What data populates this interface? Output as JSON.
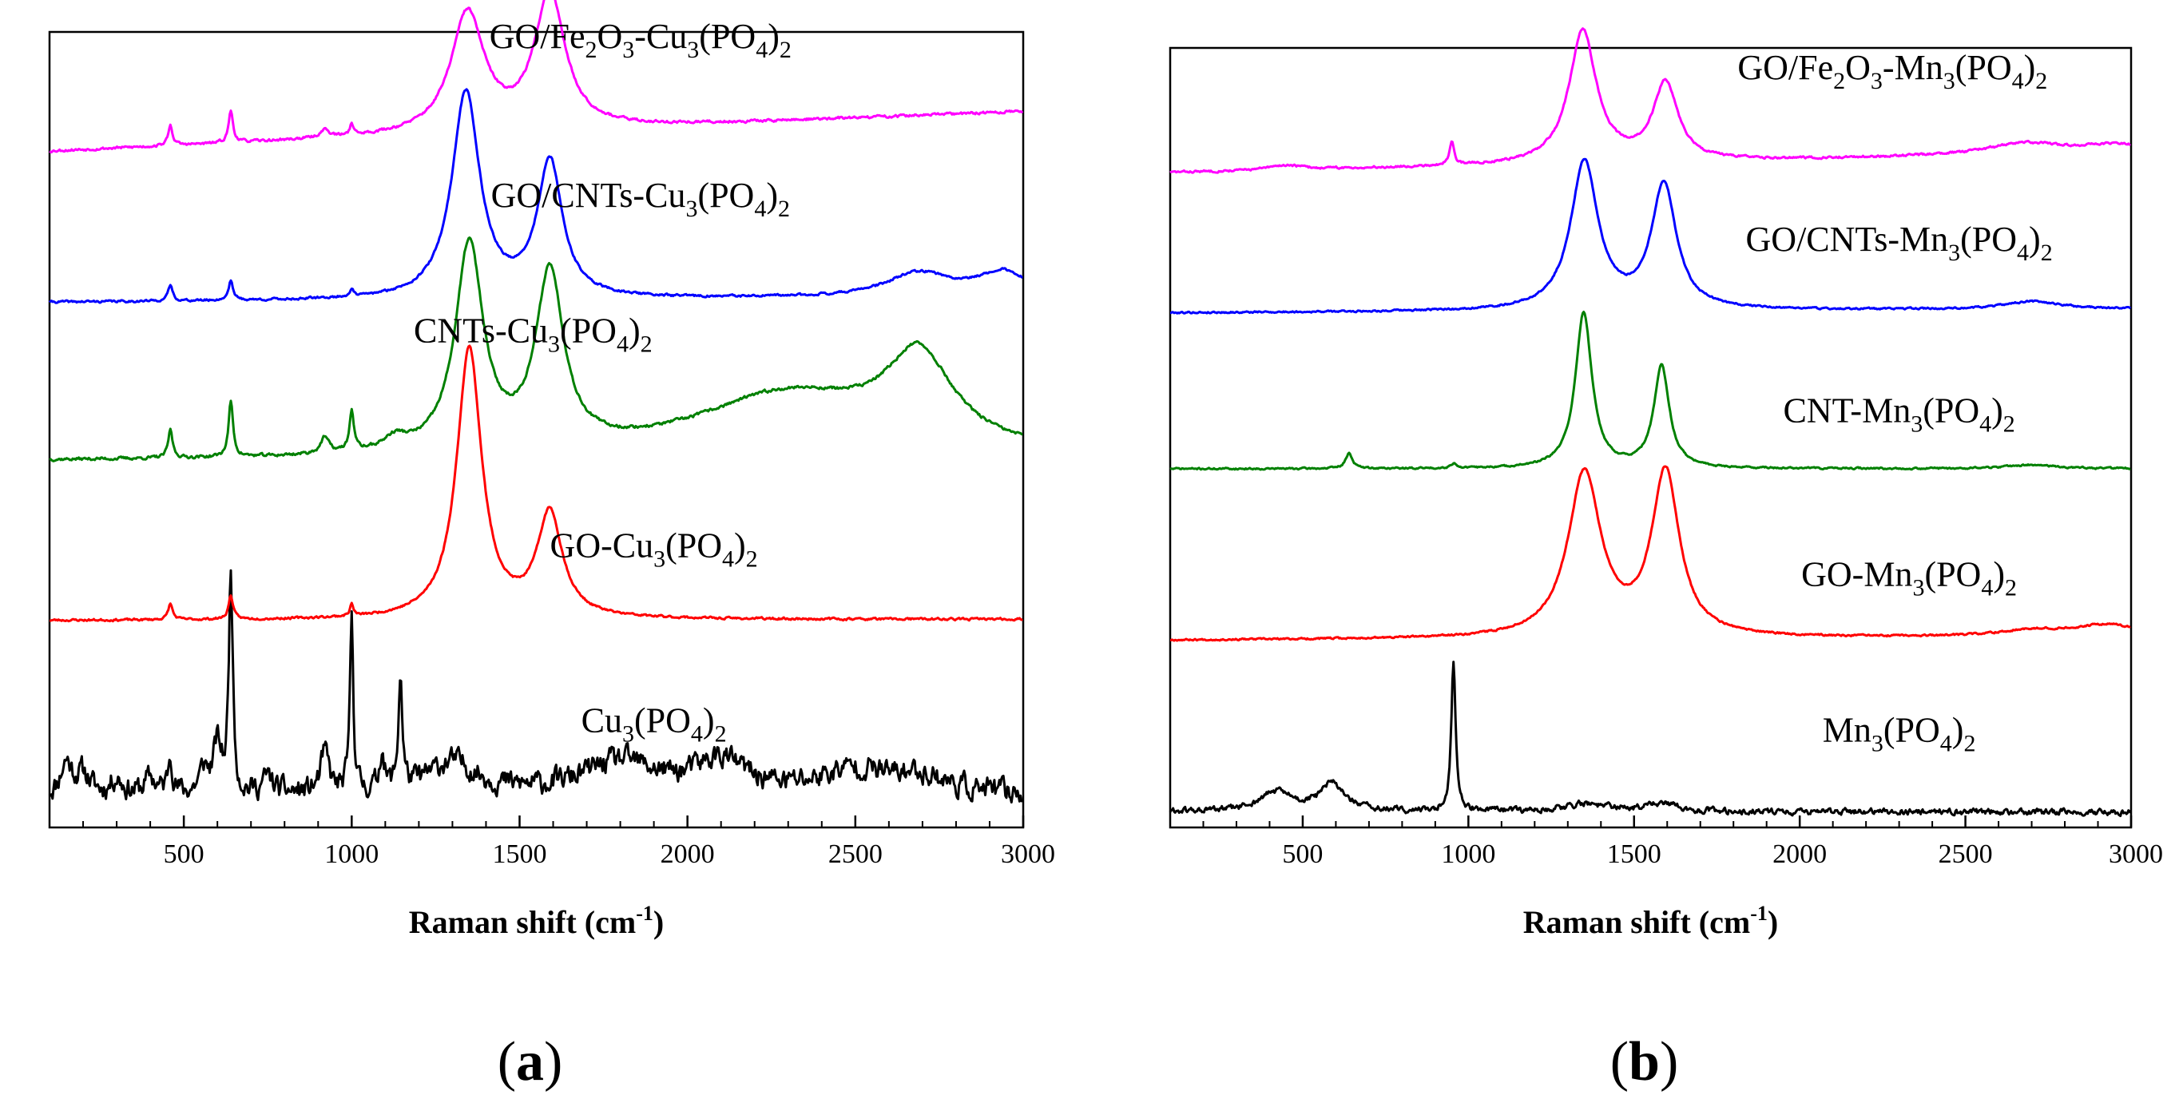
{
  "chart_data": [
    {
      "id": "a",
      "type": "line",
      "panel_label": "a",
      "xlabel": "Raman shift",
      "xlabel_unit": "(cm",
      "xlabel_unit_exp": "-1",
      "xlabel_unit_end": ")",
      "ylabel": "",
      "xlim": [
        100,
        3000
      ],
      "ylim": [
        0,
        100
      ],
      "grid": false,
      "x_ticks": [
        500,
        1000,
        1500,
        2000,
        2500,
        3000
      ],
      "series": [
        {
          "name": "Cu3(PO4)2",
          "label_parts": [
            [
              "n",
              "Cu"
            ],
            [
              "s",
              "3"
            ],
            [
              "n",
              "(PO"
            ],
            [
              "s",
              "4"
            ],
            [
              "n",
              ")"
            ],
            [
              "s",
              "2"
            ]
          ],
          "color": "#000000",
          "offset": 4,
          "baseline_slope": 0,
          "noise": 2.6,
          "noise_seed": 11,
          "label_x": 1900,
          "label_y": 12,
          "peaks": [
            [
              150,
              4,
              20
            ],
            [
              200,
              2.5,
              25
            ],
            [
              300,
              2,
              20
            ],
            [
              400,
              2,
              20
            ],
            [
              460,
              5,
              8
            ],
            [
              560,
              3,
              15
            ],
            [
              600,
              6,
              15
            ],
            [
              640,
              28,
              7
            ],
            [
              750,
              2,
              20
            ],
            [
              920,
              5,
              15
            ],
            [
              1000,
              22,
              6
            ],
            [
              1090,
              5,
              8
            ],
            [
              1145,
              14,
              7
            ],
            [
              1300,
              4,
              90
            ],
            [
              1800,
              4,
              140
            ],
            [
              2100,
              4,
              90
            ],
            [
              2500,
              3,
              130
            ],
            [
              2700,
              2,
              90
            ]
          ]
        },
        {
          "name": "GO-Cu3(PO4)2",
          "label_parts": [
            [
              "n",
              "GO-Cu"
            ],
            [
              "s",
              "3"
            ],
            [
              "n",
              "(PO"
            ],
            [
              "s",
              "4"
            ],
            [
              "n",
              ")"
            ],
            [
              "s",
              "2"
            ]
          ],
          "color": "#ff0000",
          "offset": 26,
          "baseline_slope": 0.15,
          "noise": 0.25,
          "noise_seed": 23,
          "label_x": 1900,
          "label_y": 34,
          "peaks": [
            [
              460,
              2,
              8
            ],
            [
              640,
              3,
              8
            ],
            [
              1000,
              1.5,
              6
            ],
            [
              1350,
              34,
              45
            ],
            [
              1590,
              13,
              45
            ]
          ]
        },
        {
          "name": "CNTs-Cu3(PO4)2",
          "label_parts": [
            [
              "n",
              "CNTs-Cu"
            ],
            [
              "s",
              "3"
            ],
            [
              "n",
              "(PO"
            ],
            [
              "s",
              "4"
            ],
            [
              "n",
              ")"
            ],
            [
              "s",
              "2"
            ]
          ],
          "color": "#008000",
          "offset": 46,
          "baseline_slope": 0.2,
          "noise": 0.35,
          "noise_seed": 37,
          "label_x": 1540,
          "label_y": 61,
          "peaks": [
            [
              460,
              3.5,
              8
            ],
            [
              640,
              7,
              8
            ],
            [
              920,
              2,
              15
            ],
            [
              1000,
              5,
              8
            ],
            [
              1130,
              1.5,
              40
            ],
            [
              1350,
              26,
              50
            ],
            [
              1590,
              22,
              50
            ],
            [
              2300,
              8,
              350
            ],
            [
              2690,
              11,
              120
            ]
          ]
        },
        {
          "name": "GO/CNTs-Cu3(PO4)2",
          "label_parts": [
            [
              "n",
              "GO/CNTs-Cu"
            ],
            [
              "s",
              "3"
            ],
            [
              "n",
              "(PO"
            ],
            [
              "s",
              "4"
            ],
            [
              "n",
              ")"
            ],
            [
              "s",
              "2"
            ]
          ],
          "color": "#0000ff",
          "offset": 66,
          "baseline_slope": 0.6,
          "noise": 0.25,
          "noise_seed": 41,
          "label_x": 1860,
          "label_y": 78,
          "peaks": [
            [
              460,
              2,
              8
            ],
            [
              640,
              2.5,
              8
            ],
            [
              1000,
              1,
              6
            ],
            [
              1340,
              26,
              50
            ],
            [
              1590,
              17,
              45
            ],
            [
              2690,
              3,
              120
            ],
            [
              2940,
              3,
              90
            ]
          ]
        },
        {
          "name": "GO/Fe2O3-Cu3(PO4)2",
          "label_parts": [
            [
              "n",
              "GO/Fe"
            ],
            [
              "s",
              "2"
            ],
            [
              "n",
              "O"
            ],
            [
              "s",
              "3"
            ],
            [
              "n",
              "-Cu"
            ],
            [
              "s",
              "3"
            ],
            [
              "n",
              "(PO"
            ],
            [
              "s",
              "4"
            ],
            [
              "n",
              ")"
            ],
            [
              "s",
              "2"
            ]
          ],
          "color": "#ff00ff",
          "offset": 85,
          "baseline_slope": 5,
          "noise": 0.3,
          "noise_seed": 53,
          "label_x": 1860,
          "label_y": 98,
          "peaks": [
            [
              460,
              2.5,
              8
            ],
            [
              640,
              4,
              8
            ],
            [
              920,
              1,
              15
            ],
            [
              1000,
              1.5,
              6
            ],
            [
              1345,
              15,
              60
            ],
            [
              1590,
              17,
              55
            ]
          ]
        }
      ]
    },
    {
      "id": "b",
      "type": "line",
      "panel_label": "b",
      "xlabel": "Raman shift",
      "xlabel_unit": "(cm",
      "xlabel_unit_exp": "-1",
      "xlabel_unit_end": ")",
      "ylabel": "",
      "xlim": [
        100,
        3000
      ],
      "ylim": [
        0,
        100
      ],
      "grid": false,
      "x_ticks": [
        500,
        1000,
        1500,
        2000,
        2500,
        3000
      ],
      "series": [
        {
          "name": "Mn3(PO4)2",
          "label_parts": [
            [
              "n",
              "Mn"
            ],
            [
              "s",
              "3"
            ],
            [
              "n",
              "(PO"
            ],
            [
              "s",
              "4"
            ],
            [
              "n",
              ")"
            ],
            [
              "s",
              "2"
            ]
          ],
          "color": "#000000",
          "offset": 2,
          "baseline_slope": 0,
          "noise": 0.7,
          "noise_seed": 61,
          "label_x": 2300,
          "label_y": 11,
          "peaks": [
            [
              420,
              2.5,
              60
            ],
            [
              590,
              3.5,
              45
            ],
            [
              955,
              19,
              8
            ],
            [
              1350,
              1,
              80
            ],
            [
              1580,
              1,
              60
            ]
          ]
        },
        {
          "name": "GO-Mn3(PO4)2",
          "label_parts": [
            [
              "n",
              "GO-Mn"
            ],
            [
              "s",
              "3"
            ],
            [
              "n",
              "(PO"
            ],
            [
              "s",
              "4"
            ],
            [
              "n",
              ")"
            ],
            [
              "s",
              "2"
            ]
          ],
          "color": "#ff0000",
          "offset": 24,
          "baseline_slope": 0.4,
          "noise": 0.2,
          "noise_seed": 67,
          "label_x": 2330,
          "label_y": 31,
          "peaks": [
            [
              1350,
              21,
              60
            ],
            [
              1595,
              21,
              50
            ],
            [
              2700,
              0.8,
              120
            ],
            [
              2930,
              1.5,
              120
            ]
          ]
        },
        {
          "name": "CNT-Mn3(PO4)2",
          "label_parts": [
            [
              "n",
              "CNT-Mn"
            ],
            [
              "s",
              "3"
            ],
            [
              "n",
              "(PO"
            ],
            [
              "s",
              "4"
            ],
            [
              "n",
              ")"
            ],
            [
              "s",
              "2"
            ]
          ],
          "color": "#008000",
          "offset": 46,
          "baseline_slope": 0,
          "noise": 0.2,
          "noise_seed": 71,
          "label_x": 2300,
          "label_y": 52,
          "peaks": [
            [
              640,
              2,
              12
            ],
            [
              955,
              0.6,
              10
            ],
            [
              1348,
              20,
              30
            ],
            [
              1583,
              13,
              28
            ],
            [
              2700,
              0.5,
              90
            ]
          ]
        },
        {
          "name": "GO/CNTs-Mn3(PO4)2",
          "label_parts": [
            [
              "n",
              "GO/CNTs-Mn"
            ],
            [
              "s",
              "3"
            ],
            [
              "n",
              "(PO"
            ],
            [
              "s",
              "4"
            ],
            [
              "n",
              ")"
            ],
            [
              "s",
              "2"
            ]
          ],
          "color": "#0000ff",
          "offset": 66,
          "baseline_slope": 0.5,
          "noise": 0.2,
          "noise_seed": 79,
          "label_x": 2300,
          "label_y": 74,
          "peaks": [
            [
              1350,
              19,
              50
            ],
            [
              1590,
              16,
              45
            ],
            [
              2700,
              1,
              100
            ]
          ]
        },
        {
          "name": "GO/Fe2O3-Mn3(PO4)2",
          "label_parts": [
            [
              "n",
              "GO/Fe"
            ],
            [
              "s",
              "2"
            ],
            [
              "n",
              "O"
            ],
            [
              "s",
              "3"
            ],
            [
              "n",
              "-Mn"
            ],
            [
              "s",
              "3"
            ],
            [
              "n",
              "(PO"
            ],
            [
              "s",
              "4"
            ],
            [
              "n",
              ")"
            ],
            [
              "s",
              "2"
            ]
          ],
          "color": "#ff00ff",
          "offset": 84,
          "baseline_slope": 2.5,
          "noise": 0.25,
          "noise_seed": 83,
          "label_x": 2280,
          "label_y": 96,
          "peaks": [
            [
              450,
              0.6,
              60
            ],
            [
              950,
              3,
              8
            ],
            [
              1345,
              17,
              50
            ],
            [
              1595,
              10,
              45
            ],
            [
              2680,
              1.5,
              140
            ],
            [
              2950,
              1,
              110
            ]
          ]
        }
      ]
    }
  ]
}
